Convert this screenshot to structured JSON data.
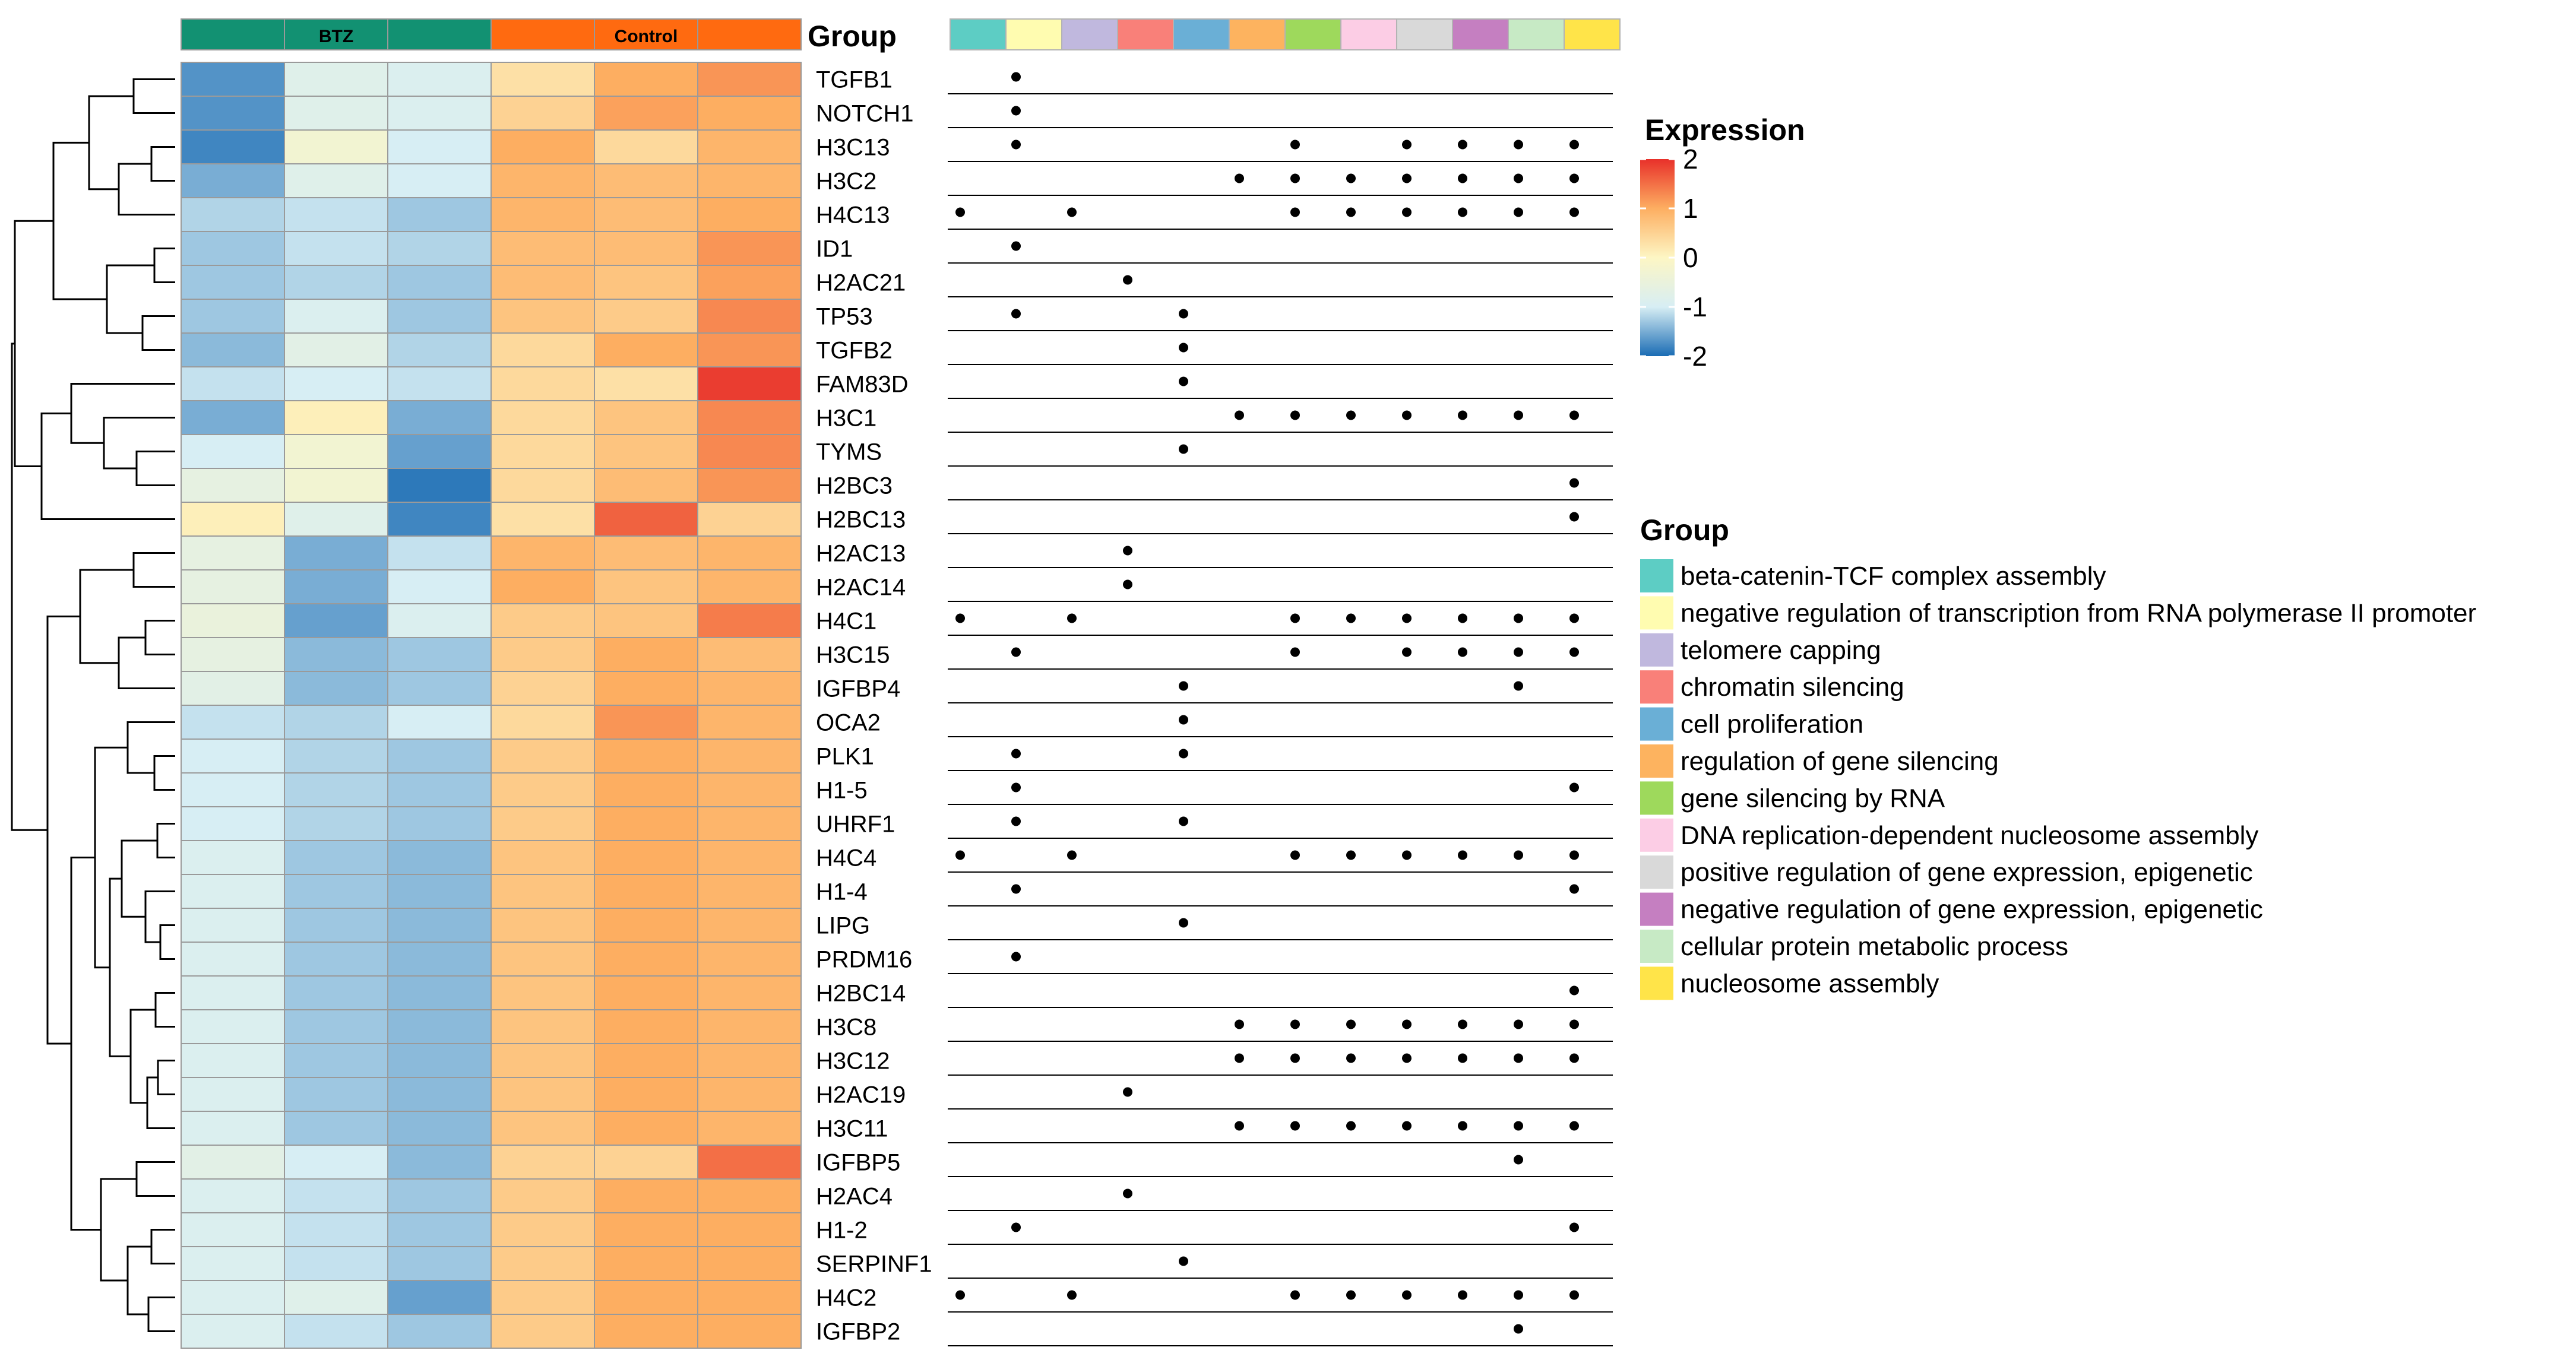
{
  "chart_data": {
    "type": "heatmap",
    "column_group_title": "Group",
    "column_groups": [
      {
        "label": "BTZ",
        "color": "#129172",
        "count": 3
      },
      {
        "label": "Control",
        "color": "#ff6a10",
        "count": 3
      }
    ],
    "expression_legend": {
      "title": "Expression",
      "ticks": [
        "2",
        "1",
        "0",
        "-1",
        "-2"
      ],
      "range": [
        -2,
        2
      ],
      "colors": [
        "#1a6cb4",
        "#d7eef4",
        "#fdf6c4",
        "#fdae61",
        "#e8302a"
      ]
    },
    "term_legend_title": "Group",
    "terms": [
      {
        "name": "beta-catenin-TCF complex assembly",
        "color": "#5dcdc4"
      },
      {
        "name": "negative regulation of transcription from RNA polymerase II promoter",
        "color": "#fffcb0"
      },
      {
        "name": "telomere capping",
        "color": "#c0b8de"
      },
      {
        "name": "chromatin silencing",
        "color": "#f98079"
      },
      {
        "name": "cell proliferation",
        "color": "#6aafd6"
      },
      {
        "name": "regulation of gene silencing",
        "color": "#fdb35f"
      },
      {
        "name": "gene silencing by RNA",
        "color": "#9ed95c"
      },
      {
        "name": "DNA replication-dependent nucleosome assembly",
        "color": "#fccde5"
      },
      {
        "name": "positive regulation of gene expression, epigenetic",
        "color": "#d9d9d9"
      },
      {
        "name": "negative regulation of gene expression, epigenetic",
        "color": "#c57fc1"
      },
      {
        "name": "cellular protein metabolic process",
        "color": "#c7eac5"
      },
      {
        "name": "nucleosome assembly",
        "color": "#ffe449"
      }
    ],
    "genes": [
      "TGFB1",
      "NOTCH1",
      "H3C13",
      "H3C2",
      "H4C13",
      "ID1",
      "H2AC21",
      "TP53",
      "TGFB2",
      "FAM83D",
      "H3C1",
      "TYMS",
      "H2BC3",
      "H2BC13",
      "H2AC13",
      "H2AC14",
      "H4C1",
      "H3C15",
      "IGFBP4",
      "OCA2",
      "PLK1",
      "H1-5",
      "UHRF1",
      "H4C4",
      "H1-4",
      "LIPG",
      "PRDM16",
      "H2BC14",
      "H3C8",
      "H3C12",
      "H2AC19",
      "H3C11",
      "IGFBP5",
      "H2AC4",
      "H1-2",
      "SERPINF1",
      "H4C2",
      "IGFBP2"
    ],
    "values": [
      [
        -1.7,
        -0.8,
        -0.9,
        0.3,
        1.0,
        1.2
      ],
      [
        -1.7,
        -0.8,
        -0.9,
        0.5,
        1.1,
        1.0
      ],
      [
        -1.8,
        -0.3,
        -1.0,
        1.0,
        0.4,
        0.9
      ],
      [
        -1.5,
        -0.8,
        -1.0,
        0.9,
        0.8,
        0.9
      ],
      [
        -1.2,
        -1.1,
        -1.3,
        0.9,
        0.8,
        1.0
      ],
      [
        -1.3,
        -1.1,
        -1.2,
        0.8,
        0.8,
        1.2
      ],
      [
        -1.3,
        -1.2,
        -1.3,
        0.8,
        0.7,
        1.1
      ],
      [
        -1.3,
        -0.9,
        -1.3,
        0.7,
        0.6,
        1.3
      ],
      [
        -1.4,
        -0.7,
        -1.2,
        0.4,
        1.0,
        1.2
      ],
      [
        -1.1,
        -1.0,
        -1.1,
        0.4,
        0.3,
        1.9
      ],
      [
        -1.5,
        0.1,
        -1.5,
        0.4,
        0.7,
        1.3
      ],
      [
        -1.0,
        -0.3,
        -1.6,
        0.4,
        0.7,
        1.3
      ],
      [
        -0.6,
        -0.3,
        -1.9,
        0.4,
        0.8,
        1.2
      ],
      [
        0.1,
        -0.8,
        -1.8,
        0.3,
        1.6,
        0.5
      ],
      [
        -0.6,
        -1.5,
        -1.1,
        0.9,
        0.8,
        0.9
      ],
      [
        -0.6,
        -1.5,
        -1.0,
        1.0,
        0.7,
        0.9
      ],
      [
        -0.5,
        -1.6,
        -0.9,
        0.6,
        0.7,
        1.4
      ],
      [
        -0.6,
        -1.4,
        -1.3,
        0.6,
        1.0,
        0.8
      ],
      [
        -0.7,
        -1.4,
        -1.3,
        0.5,
        1.0,
        0.9
      ],
      [
        -1.1,
        -1.2,
        -1.0,
        0.4,
        1.2,
        0.9
      ],
      [
        -1.0,
        -1.2,
        -1.3,
        0.6,
        1.0,
        0.9
      ],
      [
        -1.0,
        -1.2,
        -1.3,
        0.6,
        1.0,
        0.9
      ],
      [
        -1.0,
        -1.2,
        -1.3,
        0.6,
        1.0,
        0.9
      ],
      [
        -0.9,
        -1.3,
        -1.4,
        0.7,
        1.0,
        0.9
      ],
      [
        -0.9,
        -1.3,
        -1.4,
        0.7,
        1.0,
        0.9
      ],
      [
        -0.9,
        -1.3,
        -1.4,
        0.7,
        1.0,
        0.9
      ],
      [
        -0.9,
        -1.3,
        -1.4,
        0.7,
        1.0,
        0.9
      ],
      [
        -0.9,
        -1.3,
        -1.4,
        0.7,
        1.0,
        0.9
      ],
      [
        -0.9,
        -1.3,
        -1.4,
        0.7,
        1.0,
        0.9
      ],
      [
        -0.9,
        -1.3,
        -1.4,
        0.7,
        1.0,
        0.9
      ],
      [
        -0.9,
        -1.3,
        -1.4,
        0.7,
        1.0,
        0.9
      ],
      [
        -0.9,
        -1.3,
        -1.4,
        0.7,
        1.0,
        0.9
      ],
      [
        -0.7,
        -1.0,
        -1.4,
        0.5,
        0.5,
        1.5
      ],
      [
        -0.9,
        -1.1,
        -1.3,
        0.6,
        1.0,
        1.0
      ],
      [
        -0.9,
        -1.1,
        -1.3,
        0.6,
        1.0,
        1.0
      ],
      [
        -0.9,
        -1.1,
        -1.3,
        0.6,
        1.0,
        1.0
      ],
      [
        -0.9,
        -0.8,
        -1.6,
        0.6,
        1.0,
        1.0
      ],
      [
        -0.9,
        -1.1,
        -1.3,
        0.6,
        1.0,
        1.0
      ]
    ],
    "membership": [
      [
        1
      ],
      [
        1
      ],
      [
        1,
        6,
        8,
        9,
        10,
        11
      ],
      [
        5,
        6,
        7,
        8,
        9,
        10,
        11
      ],
      [
        0,
        2,
        6,
        7,
        8,
        9,
        10,
        11
      ],
      [
        1
      ],
      [
        3
      ],
      [
        1,
        4
      ],
      [
        4
      ],
      [
        4
      ],
      [
        5,
        6,
        7,
        8,
        9,
        10,
        11
      ],
      [
        4
      ],
      [
        11
      ],
      [
        11
      ],
      [
        3
      ],
      [
        3
      ],
      [
        0,
        2,
        6,
        7,
        8,
        9,
        10,
        11
      ],
      [
        1,
        6,
        8,
        9,
        10,
        11
      ],
      [
        4,
        10
      ],
      [
        4
      ],
      [
        1,
        4
      ],
      [
        1,
        11
      ],
      [
        1,
        4
      ],
      [
        0,
        2,
        6,
        7,
        8,
        9,
        10,
        11
      ],
      [
        1,
        11
      ],
      [
        4
      ],
      [
        1
      ],
      [
        11
      ],
      [
        5,
        6,
        7,
        8,
        9,
        10,
        11
      ],
      [
        5,
        6,
        7,
        8,
        9,
        10,
        11
      ],
      [
        3
      ],
      [
        5,
        6,
        7,
        8,
        9,
        10,
        11
      ],
      [
        10
      ],
      [
        3
      ],
      [
        1,
        11
      ],
      [
        4
      ],
      [
        0,
        2,
        6,
        7,
        8,
        9,
        10,
        11
      ],
      [
        10
      ]
    ]
  }
}
